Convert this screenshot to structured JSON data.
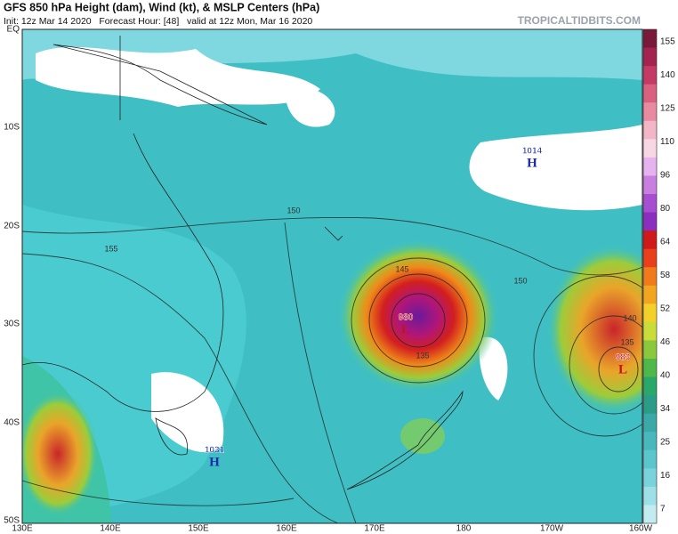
{
  "header": {
    "title": "GFS 850 hPa Height (dam), Wind (kt), & MSLP Centers (hPa)",
    "subtitle": "Init: 12z Mar 14 2020   Forecast Hour: [48]   valid at 12z Mon, Mar 16 2020",
    "site": "TROPICALTIDBITS.COM"
  },
  "map": {
    "lat_labels": [
      "EQ",
      "10S",
      "20S",
      "30S",
      "40S",
      "50S"
    ],
    "lon_labels": [
      "130E",
      "140E",
      "150E",
      "160E",
      "170E",
      "180",
      "170W",
      "160W"
    ],
    "pressure_centers": [
      {
        "letter": "H",
        "pressure": 1014
      },
      {
        "letter": "H",
        "pressure": 1031
      },
      {
        "letter": "L",
        "pressure": 980
      },
      {
        "letter": "L",
        "pressure": 983
      }
    ],
    "contour_labels": [
      150,
      155,
      145,
      150,
      140,
      135,
      135
    ]
  },
  "colorbar": {
    "ticks": [
      155,
      140,
      125,
      110,
      96,
      80,
      64,
      58,
      52,
      46,
      40,
      34,
      25,
      16,
      7
    ]
  }
}
